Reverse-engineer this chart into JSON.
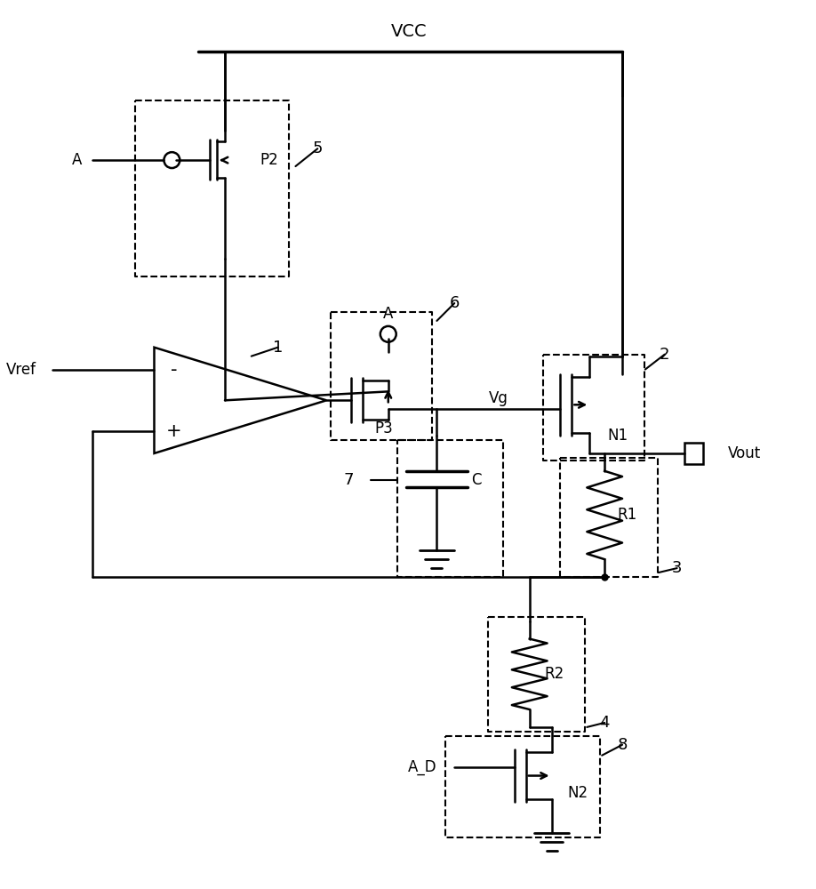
{
  "background_color": "#ffffff",
  "figsize": [
    9.18,
    10.0
  ],
  "dpi": 100,
  "vcc_label": "VCC",
  "labels": {
    "vref": "Vref",
    "vg": "Vg",
    "vout": "Vout",
    "a_p2": "A",
    "a_p3": "A",
    "a_d": "A_D",
    "p2": "P2",
    "p3": "P3",
    "n1": "N1",
    "n2": "N2",
    "r1": "R1",
    "r2": "R2",
    "c": "C",
    "num1": "1",
    "num2": "2",
    "num3": "3",
    "num4": "4",
    "num5": "5",
    "num6": "6",
    "num7": "7",
    "num8": "8"
  }
}
